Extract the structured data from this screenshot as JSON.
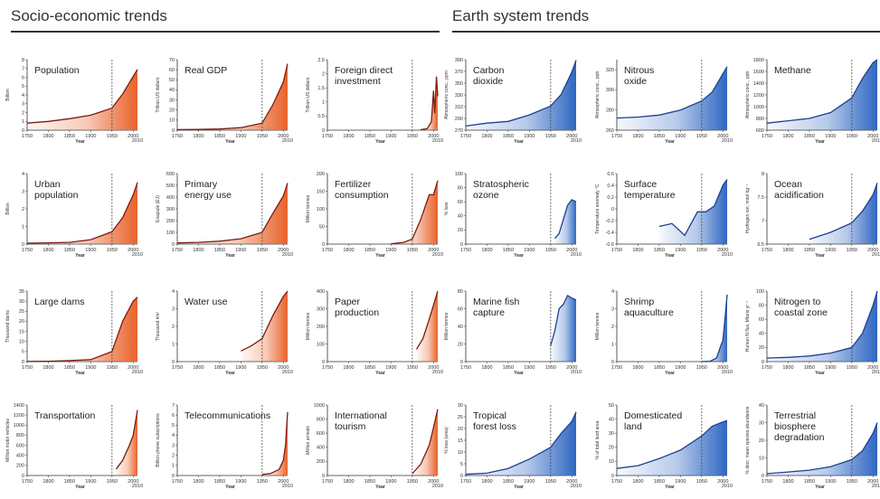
{
  "header": {
    "left_title": "Socio-economic trends",
    "right_title": "Earth system trends"
  },
  "colors": {
    "socio_line": "#7a1c10",
    "socio_fill": "#e8622a",
    "earth_line": "#1c3f8f",
    "earth_fill": "#2f67c2",
    "marker": "#444444"
  },
  "chart_data": [
    {
      "type": "area",
      "group": "socio",
      "title": [
        "Population"
      ],
      "ylabel": "Billion",
      "xlabel": "Year",
      "ylim": [
        0,
        8
      ],
      "yticks": [
        0,
        1,
        2,
        3,
        4,
        5,
        6,
        7,
        8
      ],
      "x": [
        1750,
        1800,
        1850,
        1900,
        1950,
        1975,
        2000,
        2010
      ],
      "y": [
        0.8,
        1.0,
        1.3,
        1.7,
        2.5,
        4.1,
        6.1,
        6.9
      ],
      "marker_year": 1950
    },
    {
      "type": "area",
      "group": "socio",
      "title": [
        "Real GDP"
      ],
      "ylabel": "Trillion US dollars",
      "xlabel": "Year",
      "ylim": [
        0,
        70
      ],
      "yticks": [
        0,
        10,
        20,
        30,
        40,
        50,
        60,
        70
      ],
      "x": [
        1750,
        1800,
        1850,
        1900,
        1950,
        1975,
        2000,
        2010
      ],
      "y": [
        0.5,
        0.7,
        1.2,
        2.5,
        7,
        25,
        48,
        66
      ],
      "marker_year": 1950
    },
    {
      "type": "area",
      "group": "socio",
      "title": [
        "Foreign direct",
        "investment"
      ],
      "ylabel": "Trillion US dollars",
      "xlabel": "Year",
      "ylim": [
        0,
        2.5
      ],
      "yticks": [
        0,
        0.5,
        1.0,
        1.5,
        2.0,
        2.5
      ],
      "x": [
        1970,
        1985,
        1995,
        2000,
        2003,
        2007,
        2010
      ],
      "y": [
        0.02,
        0.05,
        0.3,
        1.4,
        0.6,
        1.9,
        1.2
      ],
      "marker_year": 1950
    },
    {
      "type": "area",
      "group": "socio",
      "title": [
        "Urban",
        "population"
      ],
      "ylabel": "Billion",
      "xlabel": "Year",
      "ylim": [
        0,
        4
      ],
      "yticks": [
        0,
        1,
        2,
        3,
        4
      ],
      "x": [
        1750,
        1800,
        1850,
        1900,
        1950,
        1975,
        2000,
        2010
      ],
      "y": [
        0.05,
        0.07,
        0.1,
        0.25,
        0.7,
        1.5,
        2.8,
        3.5
      ],
      "marker_year": 1950
    },
    {
      "type": "area",
      "group": "socio",
      "title": [
        "Primary",
        "energy use"
      ],
      "ylabel": "Exajoule (EJ)",
      "xlabel": "Year",
      "ylim": [
        0,
        600
      ],
      "yticks": [
        0,
        100,
        200,
        300,
        400,
        500,
        600
      ],
      "x": [
        1750,
        1800,
        1850,
        1900,
        1950,
        1975,
        2000,
        2010
      ],
      "y": [
        10,
        15,
        25,
        45,
        100,
        260,
        410,
        520
      ],
      "marker_year": 1950
    },
    {
      "type": "area",
      "group": "socio",
      "title": [
        "Fertilizer",
        "consumption"
      ],
      "ylabel": "Million tonnes",
      "xlabel": "Year",
      "ylim": [
        0,
        200
      ],
      "yticks": [
        0,
        50,
        100,
        150,
        200
      ],
      "x": [
        1900,
        1930,
        1950,
        1970,
        1990,
        2000,
        2010
      ],
      "y": [
        1,
        5,
        14,
        70,
        140,
        140,
        180
      ],
      "marker_year": 1950
    },
    {
      "type": "area",
      "group": "socio",
      "title": [
        "Large dams"
      ],
      "ylabel": "Thousand dams",
      "xlabel": "Year",
      "ylim": [
        0,
        35
      ],
      "yticks": [
        0,
        5,
        10,
        15,
        20,
        25,
        30,
        35
      ],
      "x": [
        1750,
        1800,
        1850,
        1900,
        1950,
        1975,
        2000,
        2010
      ],
      "y": [
        0.1,
        0.2,
        0.5,
        1,
        5,
        20,
        30,
        32
      ],
      "marker_year": 1950
    },
    {
      "type": "area",
      "group": "socio",
      "title": [
        "Water use"
      ],
      "ylabel": "Thousand km³",
      "xlabel": "Year",
      "ylim": [
        0,
        4
      ],
      "yticks": [
        0,
        1,
        2,
        3,
        4
      ],
      "x": [
        1900,
        1925,
        1950,
        1975,
        2000,
        2010
      ],
      "y": [
        0.6,
        0.9,
        1.3,
        2.6,
        3.7,
        4.0
      ],
      "marker_year": 1950
    },
    {
      "type": "area",
      "group": "socio",
      "title": [
        "Paper",
        "production"
      ],
      "ylabel": "Million tonnes",
      "xlabel": "Year",
      "ylim": [
        0,
        400
      ],
      "yticks": [
        0,
        100,
        200,
        300,
        400
      ],
      "x": [
        1960,
        1975,
        1990,
        2000,
        2010
      ],
      "y": [
        70,
        130,
        240,
        320,
        400
      ],
      "marker_year": 1950
    },
    {
      "type": "area",
      "group": "socio",
      "title": [
        "Transportation"
      ],
      "ylabel": "Million motor vehicles",
      "xlabel": "Year",
      "ylim": [
        0,
        1400
      ],
      "yticks": [
        0,
        200,
        400,
        600,
        800,
        1000,
        1200,
        1400
      ],
      "x": [
        1960,
        1975,
        1990,
        2000,
        2010
      ],
      "y": [
        130,
        300,
        580,
        800,
        1300
      ],
      "marker_year": 1950
    },
    {
      "type": "area",
      "group": "socio",
      "title": [
        "Telecommunications"
      ],
      "ylabel": "Billion phone subscriptions",
      "xlabel": "Year",
      "ylim": [
        0,
        7
      ],
      "yticks": [
        0,
        1,
        2,
        3,
        4,
        5,
        6,
        7
      ],
      "x": [
        1950,
        1970,
        1990,
        2000,
        2005,
        2010
      ],
      "y": [
        0.1,
        0.2,
        0.6,
        1.5,
        3,
        6.3
      ],
      "marker_year": 1950
    },
    {
      "type": "area",
      "group": "socio",
      "title": [
        "International",
        "tourism"
      ],
      "ylabel": "Million arrivals",
      "xlabel": "Year",
      "ylim": [
        0,
        1000
      ],
      "yticks": [
        0,
        200,
        400,
        600,
        800,
        1000
      ],
      "x": [
        1950,
        1970,
        1990,
        2000,
        2010
      ],
      "y": [
        25,
        160,
        430,
        680,
        940
      ],
      "marker_year": 1950
    },
    {
      "type": "area",
      "group": "earth",
      "title": [
        "Carbon",
        "dioxide"
      ],
      "ylabel": "Atmospheric conc., ppm",
      "xlabel": "Year",
      "ylim": [
        270,
        390
      ],
      "yticks": [
        270,
        290,
        310,
        330,
        350,
        370,
        390
      ],
      "x": [
        1750,
        1800,
        1850,
        1900,
        1950,
        1975,
        2000,
        2010
      ],
      "y": [
        277,
        282,
        285,
        296,
        311,
        331,
        369,
        389
      ],
      "marker_year": 1950
    },
    {
      "type": "area",
      "group": "earth",
      "title": [
        "Nitrous",
        "oxide"
      ],
      "ylabel": "Atmospheric conc., ppb",
      "xlabel": "Year",
      "ylim": [
        260,
        330
      ],
      "yticks": [
        260,
        280,
        300,
        320
      ],
      "x": [
        1750,
        1800,
        1850,
        1900,
        1950,
        1975,
        2000,
        2010
      ],
      "y": [
        272,
        273,
        275,
        280,
        289,
        298,
        316,
        323
      ],
      "marker_year": 1950
    },
    {
      "type": "area",
      "group": "earth",
      "title": [
        "Methane"
      ],
      "ylabel": "Atmospheric conc., ppb",
      "xlabel": "Year",
      "ylim": [
        600,
        1800
      ],
      "yticks": [
        600,
        800,
        1000,
        1200,
        1400,
        1600,
        1800
      ],
      "x": [
        1750,
        1800,
        1850,
        1900,
        1950,
        1975,
        2000,
        2010
      ],
      "y": [
        720,
        760,
        800,
        900,
        1150,
        1480,
        1750,
        1800
      ],
      "marker_year": 1950
    },
    {
      "type": "area",
      "group": "earth",
      "title": [
        "Stratospheric",
        "ozone"
      ],
      "ylabel": "% loss",
      "xlabel": "Year",
      "ylim": [
        0,
        100
      ],
      "yticks": [
        0,
        20,
        40,
        60,
        80,
        100
      ],
      "x": [
        1960,
        1970,
        1980,
        1990,
        2000,
        2010
      ],
      "y": [
        8,
        15,
        35,
        55,
        63,
        60
      ],
      "marker_year": 1950
    },
    {
      "type": "area",
      "group": "earth",
      "title": [
        "Surface",
        "temperature"
      ],
      "ylabel": "Temperature anomaly °C",
      "xlabel": "Year",
      "ylim": [
        -0.6,
        0.6
      ],
      "yticks": [
        -0.6,
        -0.4,
        -0.2,
        0,
        0.2,
        0.4,
        0.6
      ],
      "x": [
        1850,
        1880,
        1910,
        1940,
        1960,
        1980,
        2000,
        2010
      ],
      "y": [
        -0.3,
        -0.25,
        -0.45,
        -0.05,
        -0.05,
        0.05,
        0.4,
        0.5
      ],
      "marker_year": 1950
    },
    {
      "type": "area",
      "group": "earth",
      "title": [
        "Ocean",
        "acidification"
      ],
      "ylabel": "Hydrogen ion, nmol kg⁻¹",
      "xlabel": "Year",
      "ylim": [
        6.5,
        8.0
      ],
      "yticks": [
        6.5,
        7.0,
        7.5,
        8.0
      ],
      "x": [
        1850,
        1900,
        1950,
        1975,
        2000,
        2010
      ],
      "y": [
        6.6,
        6.75,
        6.95,
        7.2,
        7.55,
        7.8
      ],
      "marker_year": 1950
    },
    {
      "type": "area",
      "group": "earth",
      "title": [
        "Marine fish",
        "capture"
      ],
      "ylabel": "Million tonnes",
      "xlabel": "Year",
      "ylim": [
        0,
        80
      ],
      "yticks": [
        0,
        20,
        40,
        60,
        80
      ],
      "x": [
        1950,
        1960,
        1970,
        1980,
        1990,
        2000,
        2010
      ],
      "y": [
        18,
        35,
        60,
        65,
        75,
        72,
        70
      ],
      "marker_year": 1950
    },
    {
      "type": "area",
      "group": "earth",
      "title": [
        "Shrimp",
        "aquaculture"
      ],
      "ylabel": "Million tonnes",
      "xlabel": "Year",
      "ylim": [
        0,
        4
      ],
      "yticks": [
        0,
        1,
        2,
        3,
        4
      ],
      "x": [
        1950,
        1970,
        1985,
        1995,
        2000,
        2005,
        2010
      ],
      "y": [
        0,
        0.02,
        0.2,
        0.9,
        1.2,
        2.5,
        3.8
      ],
      "marker_year": 1950
    },
    {
      "type": "area",
      "group": "earth",
      "title": [
        "Nitrogen to",
        "coastal zone"
      ],
      "ylabel": "Human N flux, Mtons yr⁻¹",
      "xlabel": "Year",
      "ylim": [
        0,
        100
      ],
      "yticks": [
        0,
        20,
        40,
        60,
        80,
        100
      ],
      "x": [
        1750,
        1800,
        1850,
        1900,
        1950,
        1975,
        2000,
        2010
      ],
      "y": [
        5,
        6,
        8,
        12,
        20,
        40,
        80,
        100
      ],
      "marker_year": 1950
    },
    {
      "type": "area",
      "group": "earth",
      "title": [
        "Tropical",
        "forest loss"
      ],
      "ylabel": "% loss (area)",
      "xlabel": "Year",
      "ylim": [
        0,
        30
      ],
      "yticks": [
        0,
        5,
        10,
        15,
        20,
        25,
        30
      ],
      "x": [
        1750,
        1800,
        1850,
        1900,
        1950,
        1975,
        2000,
        2010
      ],
      "y": [
        0.5,
        1,
        3,
        7,
        12,
        18,
        23,
        27
      ],
      "marker_year": 1950
    },
    {
      "type": "area",
      "group": "earth",
      "title": [
        "Domesticated",
        "land"
      ],
      "ylabel": "% of total land area",
      "xlabel": "Year",
      "ylim": [
        0,
        50
      ],
      "yticks": [
        0,
        10,
        20,
        30,
        40,
        50
      ],
      "x": [
        1750,
        1800,
        1850,
        1900,
        1950,
        1975,
        2000,
        2010
      ],
      "y": [
        5,
        7,
        12,
        18,
        28,
        35,
        38,
        39
      ],
      "marker_year": 1950
    },
    {
      "type": "area",
      "group": "earth",
      "title": [
        "Terrestrial",
        "biosphere",
        "degradation"
      ],
      "ylabel": "% decr. mean species abundance",
      "xlabel": "Year",
      "ylim": [
        0,
        40
      ],
      "yticks": [
        0,
        10,
        20,
        30,
        40
      ],
      "x": [
        1750,
        1800,
        1850,
        1900,
        1950,
        1975,
        2000,
        2010
      ],
      "y": [
        1,
        2,
        3,
        5,
        9,
        14,
        24,
        30
      ],
      "marker_year": 1950
    }
  ]
}
